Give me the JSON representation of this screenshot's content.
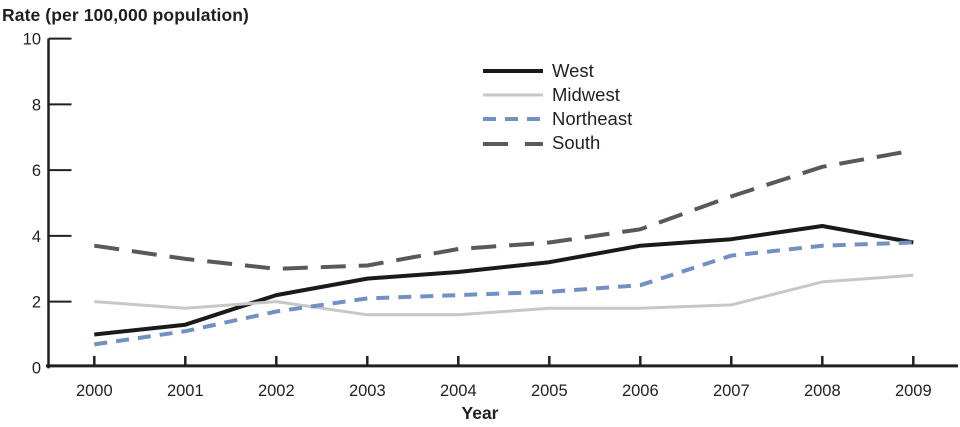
{
  "figure": {
    "title": "Rate (per 100,000 population)"
  },
  "chart_data": {
    "type": "line",
    "title": "Rate (per 100,000 population)",
    "xlabel": "Year",
    "ylabel": "Rate (per 100,000 population)",
    "x": [
      2000,
      2001,
      2002,
      2003,
      2004,
      2005,
      2006,
      2007,
      2008,
      2009
    ],
    "series": [
      {
        "name": "West",
        "color": "#1a1a1a",
        "style": "solid",
        "stroke_width": 4,
        "values": [
          1.0,
          1.3,
          2.2,
          2.7,
          2.9,
          3.2,
          3.7,
          3.9,
          4.3,
          3.8
        ]
      },
      {
        "name": "Midwest",
        "color": "#c7c7c7",
        "style": "solid",
        "stroke_width": 3,
        "values": [
          2.0,
          1.8,
          2.0,
          1.6,
          1.6,
          1.8,
          1.8,
          1.9,
          2.6,
          2.8
        ]
      },
      {
        "name": "Northeast",
        "color": "#7390c2",
        "style": "dashed-short",
        "stroke_width": 4,
        "values": [
          0.7,
          1.1,
          1.7,
          2.1,
          2.2,
          2.3,
          2.5,
          3.4,
          3.7,
          3.8
        ]
      },
      {
        "name": "South",
        "color": "#58595b",
        "style": "dashed-long",
        "stroke_width": 4,
        "values": [
          3.7,
          3.3,
          3.0,
          3.1,
          3.6,
          3.8,
          4.2,
          5.2,
          6.1,
          6.6
        ]
      }
    ],
    "ylim": [
      0,
      10
    ],
    "yticks": [
      0,
      2,
      4,
      6,
      8,
      10
    ],
    "grid": false,
    "legend_position": "top-center-inside"
  },
  "colors": {
    "axis": "#231f20",
    "text": "#231f20",
    "background": "#ffffff"
  }
}
